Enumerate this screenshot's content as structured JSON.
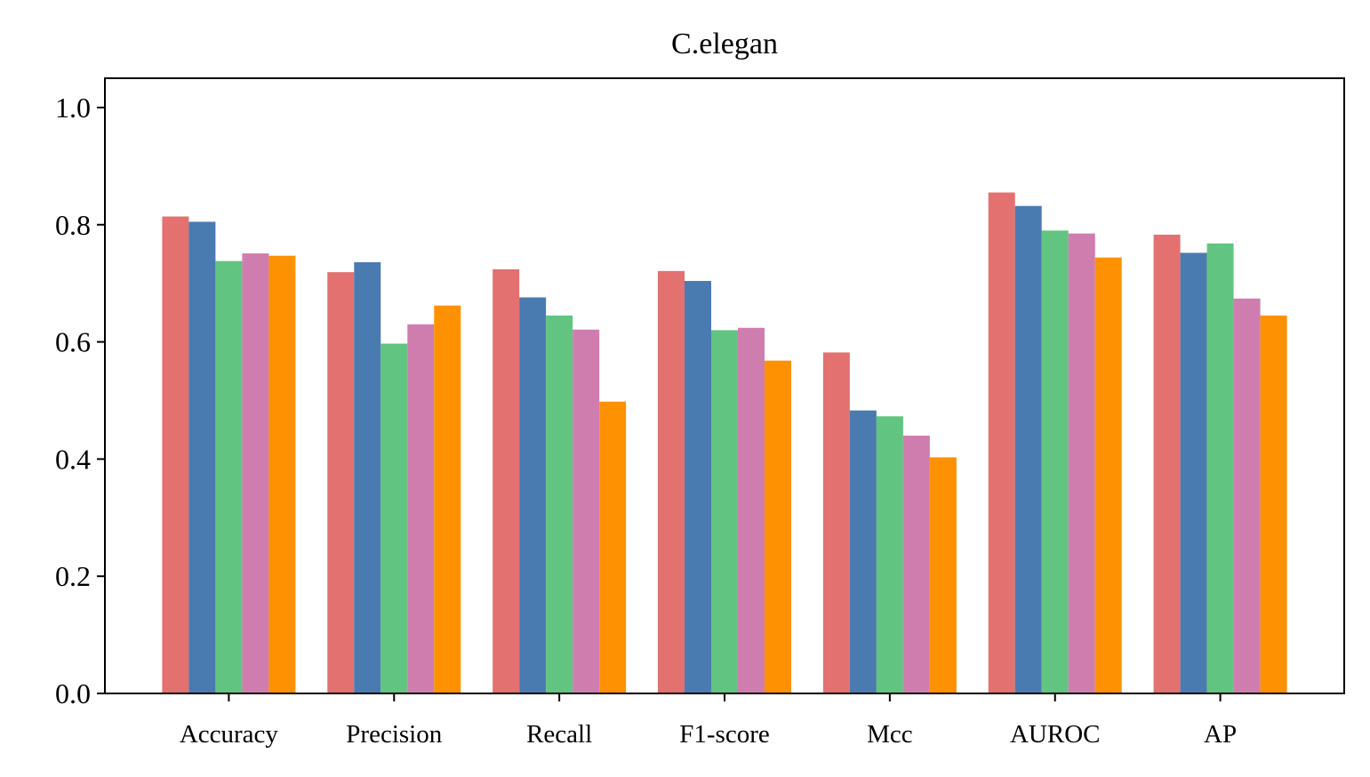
{
  "chart_data": {
    "type": "bar",
    "title": "C.elegan",
    "xlabel": "",
    "ylabel": "",
    "ylim": [
      0,
      1.05
    ],
    "yticks": [
      "0.0",
      "0.2",
      "0.4",
      "0.6",
      "0.8",
      "1.0"
    ],
    "categories": [
      "Accuracy",
      "Precision",
      "Recall",
      "F1-score",
      "Mcc",
      "AUROC",
      "AP"
    ],
    "legend": false,
    "grid": false,
    "series": [
      {
        "color": "#e27170",
        "values": [
          0.814,
          0.719,
          0.724,
          0.721,
          0.582,
          0.855,
          0.783
        ]
      },
      {
        "color": "#4a7bb0",
        "values": [
          0.805,
          0.736,
          0.676,
          0.704,
          0.483,
          0.832,
          0.752
        ]
      },
      {
        "color": "#62c481",
        "values": [
          0.738,
          0.597,
          0.645,
          0.62,
          0.473,
          0.79,
          0.768
        ]
      },
      {
        "color": "#cf7daf",
        "values": [
          0.751,
          0.63,
          0.621,
          0.624,
          0.44,
          0.785,
          0.674
        ]
      },
      {
        "color": "#fd9102",
        "values": [
          0.747,
          0.662,
          0.498,
          0.568,
          0.403,
          0.744,
          0.645
        ]
      }
    ]
  }
}
